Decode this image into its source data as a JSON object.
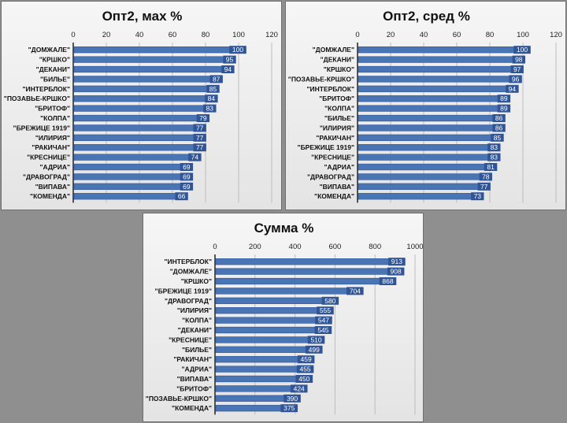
{
  "colors": {
    "bar": "#4a75b5",
    "bar_edge": "#2f5597",
    "label_box": "#2f5597"
  },
  "chart_data": [
    {
      "type": "bar",
      "orientation": "horizontal",
      "title": "Опт2, мах %",
      "categories": [
        "\"ДОМЖАЛЕ\"",
        "\"КРШКО\"",
        "\"ДЕКАНИ\"",
        "\"БИЛЬЕ\"",
        "\"ИНТЕРБЛОК\"",
        "\"ПОЗАВЬЕ-КРШКО\"",
        "\"БРИТОФ\"",
        "\"КОЛПА\"",
        "\"БРЕЖИЦЕ 1919\"",
        "\"ИЛИРИЯ\"",
        "\"РАКИЧАН\"",
        "\"КРЕСНИЦЕ\"",
        "\"АДРИА\"",
        "\"ДРАВОГРАД\"",
        "\"ВИПАВА\"",
        "\"КОМЕНДА\""
      ],
      "values": [
        100,
        95,
        94,
        87,
        85,
        84,
        83,
        79,
        77,
        77,
        77,
        74,
        69,
        69,
        69,
        66
      ],
      "xlim": [
        0,
        120
      ],
      "xticks": [
        0,
        20,
        40,
        60,
        80,
        100,
        120
      ],
      "grid": true
    },
    {
      "type": "bar",
      "orientation": "horizontal",
      "title": "Опт2, сред %",
      "categories": [
        "\"ДОМЖАЛЕ\"",
        "\"ДЕКАНИ\"",
        "\"КРШКО\"",
        "\"ПОЗАВЬЕ-КРШКО\"",
        "\"ИНТЕРБЛОК\"",
        "\"БРИТОФ\"",
        "\"КОЛПА\"",
        "\"БИЛЬЕ\"",
        "\"ИЛИРИЯ\"",
        "\"РАКИЧАН\"",
        "\"БРЕЖИЦЕ 1919\"",
        "\"КРЕСНИЦЕ\"",
        "\"АДРИА\"",
        "\"ДРАВОГРАД\"",
        "\"ВИПАВА\"",
        "\"КОМЕНДА\""
      ],
      "values": [
        100,
        98,
        97,
        96,
        94,
        89,
        89,
        86,
        86,
        85,
        83,
        83,
        81,
        78,
        77,
        73
      ],
      "xlim": [
        0,
        120
      ],
      "xticks": [
        0,
        20,
        40,
        60,
        80,
        100,
        120
      ],
      "grid": true
    },
    {
      "type": "bar",
      "orientation": "horizontal",
      "title": "Сумма %",
      "categories": [
        "\"ИНТЕРБЛОК\"",
        "\"ДОМЖАЛЕ\"",
        "\"КРШКО\"",
        "\"БРЕЖИЦЕ 1919\"",
        "\"ДРАВОГРАД\"",
        "\"ИЛИРИЯ\"",
        "\"КОЛПА\"",
        "\"ДЕКАНИ\"",
        "\"КРЕСНИЦЕ\"",
        "\"БИЛЬЕ\"",
        "\"РАКИЧАН\"",
        "\"АДРИА\"",
        "\"ВИПАВА\"",
        "\"БРИТОФ\"",
        "\"ПОЗАВЬЕ-КРШКО\"",
        "\"КОМЕНДА\""
      ],
      "values": [
        913,
        908,
        868,
        704,
        580,
        555,
        547,
        545,
        510,
        499,
        459,
        455,
        450,
        424,
        390,
        375
      ],
      "xlim": [
        0,
        1000
      ],
      "xticks": [
        0,
        200,
        400,
        600,
        800,
        1000
      ],
      "grid": true
    }
  ]
}
